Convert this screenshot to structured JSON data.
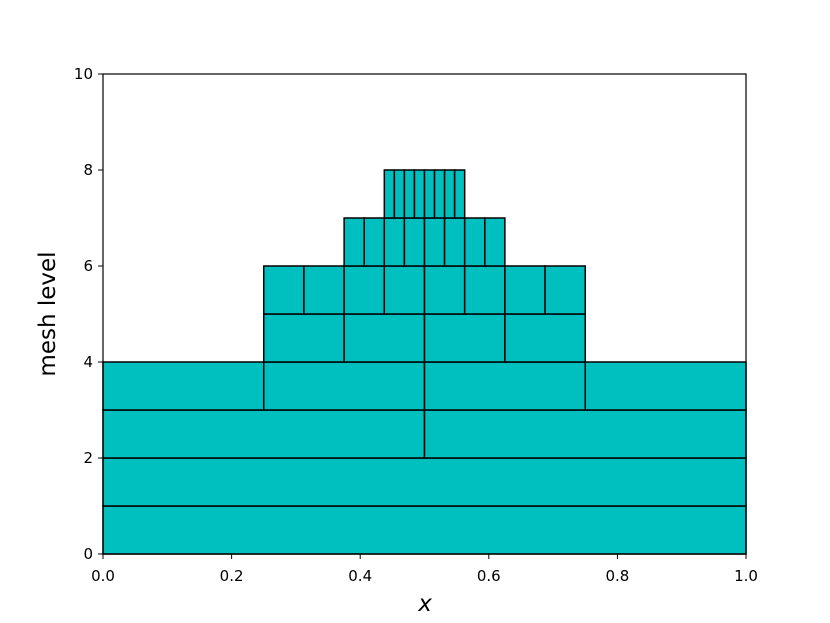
{
  "chart_data": {
    "type": "mesh",
    "xlabel": "x",
    "ylabel": "mesh level",
    "color": "#00bfbf",
    "levels": [
      {
        "level": 0,
        "edges": [
          0,
          1
        ]
      },
      {
        "level": 1,
        "edges": [
          0,
          1
        ]
      },
      {
        "level": 2,
        "edges": [
          0,
          0.5,
          1
        ]
      },
      {
        "level": 3,
        "edges": [
          0,
          0.25,
          0.5,
          0.75,
          1
        ]
      },
      {
        "level": 4,
        "edges": [
          0.25,
          0.375,
          0.5,
          0.625,
          0.75
        ]
      },
      {
        "level": 5,
        "edges": [
          0.25,
          0.3125,
          0.375,
          0.4375,
          0.5,
          0.5625,
          0.625,
          0.6875,
          0.75
        ]
      },
      {
        "level": 6,
        "edges": [
          0.375,
          0.40625,
          0.4375,
          0.46875,
          0.5,
          0.53125,
          0.5625,
          0.59375,
          0.625
        ]
      },
      {
        "level": 7,
        "edges": [
          0.4375,
          0.453125,
          0.46875,
          0.484375,
          0.5,
          0.515625,
          0.53125,
          0.546875,
          0.5625
        ]
      }
    ],
    "xlim": [
      0,
      1
    ],
    "ylim": [
      0,
      10
    ],
    "xticks": [
      {
        "value": 0,
        "label": "0.0"
      },
      {
        "value": 0.2,
        "label": "0.2"
      },
      {
        "value": 0.4,
        "label": "0.4"
      },
      {
        "value": 0.6,
        "label": "0.6"
      },
      {
        "value": 0.8,
        "label": "0.8"
      },
      {
        "value": 1,
        "label": "1.0"
      }
    ],
    "yticks": [
      0,
      2,
      4,
      6,
      8,
      10
    ]
  }
}
